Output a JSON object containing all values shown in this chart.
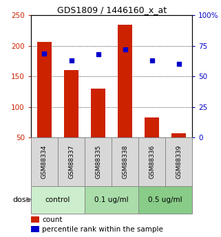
{
  "title": "GDS1809 / 1446160_x_at",
  "samples": [
    "GSM88334",
    "GSM88337",
    "GSM88335",
    "GSM88338",
    "GSM88336",
    "GSM88339"
  ],
  "bar_values": [
    207,
    160,
    130,
    235,
    83,
    57
  ],
  "percentile_values": [
    69,
    63,
    68,
    72,
    63,
    60
  ],
  "groups": [
    {
      "label": "control",
      "indices": [
        0,
        1
      ]
    },
    {
      "label": "0.1 ug/ml",
      "indices": [
        2,
        3
      ]
    },
    {
      "label": "0.5 ug/ml",
      "indices": [
        4,
        5
      ]
    }
  ],
  "group_colors": [
    "#cceecc",
    "#aaddaa",
    "#88cc88"
  ],
  "dose_label": "dose",
  "bar_color": "#cc2200",
  "percentile_color": "#0000cc",
  "bar_bottom": 50,
  "ylim_left": [
    50,
    250
  ],
  "ylim_right": [
    0,
    100
  ],
  "yticks_left": [
    50,
    100,
    150,
    200,
    250
  ],
  "yticks_right": [
    0,
    25,
    50,
    75,
    100
  ],
  "ytick_labels_left": [
    "50",
    "100",
    "150",
    "200",
    "250"
  ],
  "ytick_labels_right": [
    "0",
    "25",
    "50",
    "75",
    "100%"
  ],
  "grid_values": [
    100,
    150,
    200
  ],
  "legend_count_label": "count",
  "legend_percentile_label": "percentile rank within the sample",
  "bar_width": 0.55,
  "sample_cell_color": "#d8d8d8",
  "figsize": [
    3.21,
    3.45
  ],
  "dpi": 100
}
